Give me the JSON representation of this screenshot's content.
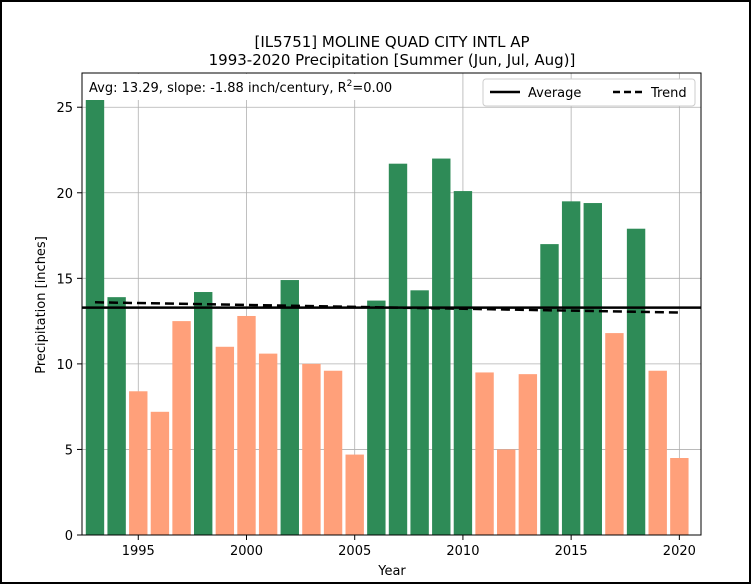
{
  "chart_data": {
    "type": "bar",
    "title_line1": "[IL5751] MOLINE QUAD CITY INTL AP",
    "title_line2": "1993-2020 Precipitation [Summer (Jun, Jul, Aug)]",
    "xlabel": "Year",
    "ylabel": "Precipitation [inches]",
    "annotation_main": "Avg: 13.29, slope: -1.88 inch/century, R",
    "annotation_sup": "2",
    "annotation_tail": "=0.00",
    "x": [
      1993,
      1994,
      1995,
      1996,
      1997,
      1998,
      1999,
      2000,
      2001,
      2002,
      2003,
      2004,
      2005,
      2006,
      2007,
      2008,
      2009,
      2010,
      2011,
      2012,
      2013,
      2014,
      2015,
      2016,
      2017,
      2018,
      2019,
      2020
    ],
    "values": [
      26.8,
      13.9,
      8.4,
      7.2,
      12.5,
      14.2,
      11.0,
      12.8,
      10.6,
      14.9,
      10.0,
      9.6,
      4.7,
      13.7,
      21.7,
      14.3,
      22.0,
      20.1,
      9.5,
      5.0,
      9.4,
      17.0,
      19.5,
      19.4,
      11.8,
      17.9,
      9.6,
      4.5
    ],
    "average": 13.29,
    "trend_start": 13.6,
    "trend_end": 13.0,
    "xlim": [
      1992.4,
      2021.0
    ],
    "ylim": [
      0,
      27.0
    ],
    "xticks": [
      1995,
      2000,
      2005,
      2010,
      2015,
      2020
    ],
    "yticks": [
      0,
      5,
      10,
      15,
      20,
      25
    ],
    "grid": true,
    "colors": {
      "above": "#2e8b57",
      "below": "#ffa07a",
      "average": "#000000",
      "trend": "#000000"
    },
    "legend": {
      "position": "top-right",
      "items": [
        {
          "label": "Average",
          "style": "solid"
        },
        {
          "label": "Trend",
          "style": "dashed"
        }
      ]
    }
  }
}
